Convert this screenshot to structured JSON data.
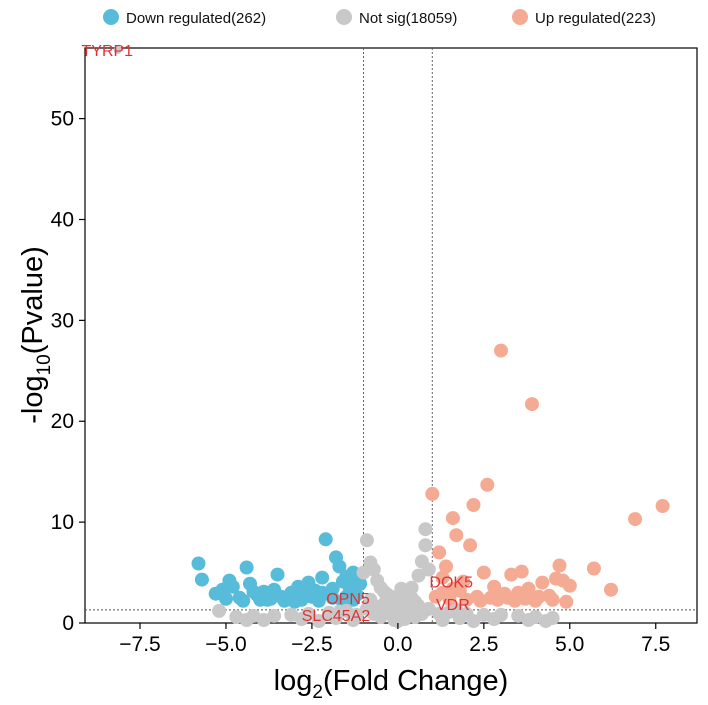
{
  "chart_data": {
    "type": "scatter",
    "title": "",
    "xlabel": {
      "base": "log",
      "sub": "2",
      "rest": "(Fold Change)"
    },
    "ylabel": {
      "base": "-log",
      "sub": "10",
      "rest": "(Pvalue)"
    },
    "xlim": [
      -9.1,
      8.7
    ],
    "ylim": [
      0,
      57
    ],
    "xticks": [
      -7.5,
      -5.0,
      -2.5,
      0.0,
      2.5,
      5.0,
      7.5
    ],
    "xtick_labels": [
      "−7.5",
      "−5.0",
      "−2.5",
      "0.0",
      "2.5",
      "5.0",
      "7.5"
    ],
    "yticks": [
      0,
      10,
      20,
      30,
      40,
      50
    ],
    "ytick_labels": [
      "0",
      "10",
      "20",
      "30",
      "40",
      "50"
    ],
    "thresholds": {
      "fc_lines": [
        -1,
        1
      ],
      "p_line": 1.3
    },
    "legend": [
      {
        "label": "Down regulated(262)",
        "color": "#56bcd9"
      },
      {
        "label": "Not sig(18059)",
        "color": "#c8c8c8"
      },
      {
        "label": "Up regulated(223)",
        "color": "#f4aa93"
      }
    ],
    "series": [
      {
        "name": "Down regulated",
        "color": "#56bcd9",
        "points": [
          [
            -5.8,
            5.9
          ],
          [
            -5.7,
            4.3
          ],
          [
            -5.3,
            2.9
          ],
          [
            -5.1,
            3.3
          ],
          [
            -4.9,
            4.2
          ],
          [
            -4.8,
            3.6
          ],
          [
            -4.6,
            2.5
          ],
          [
            -4.4,
            5.5
          ],
          [
            -4.3,
            3.9
          ],
          [
            -4.1,
            2.8
          ],
          [
            -3.9,
            3.1
          ],
          [
            -3.7,
            2.4
          ],
          [
            -3.5,
            4.8
          ],
          [
            -3.3,
            2.2
          ],
          [
            -3.1,
            3.0
          ],
          [
            -2.9,
            3.6
          ],
          [
            -2.8,
            2.3
          ],
          [
            -2.6,
            4.0
          ],
          [
            -2.5,
            2.6
          ],
          [
            -2.4,
            3.2
          ],
          [
            -2.2,
            4.5
          ],
          [
            -2.1,
            8.3
          ],
          [
            -2.0,
            2.9
          ],
          [
            -1.9,
            3.4
          ],
          [
            -1.8,
            6.5
          ],
          [
            -1.7,
            5.6
          ],
          [
            -1.6,
            4.1
          ],
          [
            -1.5,
            2.6
          ],
          [
            -1.4,
            3.5
          ],
          [
            -1.3,
            5.0
          ],
          [
            -1.2,
            2.8
          ],
          [
            -1.1,
            3.9
          ],
          [
            -4.5,
            2.2
          ],
          [
            -3.8,
            2.3
          ],
          [
            -3.0,
            2.1
          ],
          [
            -2.3,
            2.2
          ],
          [
            -1.6,
            2.1
          ],
          [
            -3.4,
            2.6
          ],
          [
            -2.7,
            2.7
          ],
          [
            -4.0,
            2.3
          ],
          [
            -1.9,
            2.5
          ],
          [
            -1.3,
            2.3
          ],
          [
            -5.0,
            2.4
          ],
          [
            -3.6,
            3.3
          ],
          [
            -2.2,
            3.0
          ],
          [
            -1.5,
            4.6
          ],
          [
            -4.2,
            3.1
          ],
          [
            -1.2,
            4.4
          ]
        ]
      },
      {
        "name": "Not sig",
        "color": "#c8c8c8",
        "points": [
          [
            -1.0,
            5.0
          ],
          [
            -0.9,
            8.2
          ],
          [
            -0.8,
            6.0
          ],
          [
            -0.7,
            5.3
          ],
          [
            -0.6,
            4.2
          ],
          [
            -0.5,
            3.5
          ],
          [
            -0.3,
            2.8
          ],
          [
            -0.1,
            2.2
          ],
          [
            0.2,
            2.9
          ],
          [
            0.4,
            3.5
          ],
          [
            0.6,
            4.7
          ],
          [
            0.8,
            7.7
          ],
          [
            0.8,
            9.3
          ],
          [
            0.7,
            6.1
          ],
          [
            0.9,
            5.3
          ],
          [
            0.5,
            2.1
          ],
          [
            0.0,
            1.8
          ],
          [
            -0.4,
            1.9
          ],
          [
            0.3,
            1.9
          ],
          [
            0.6,
            1.7
          ],
          [
            -0.8,
            2.3
          ],
          [
            -0.2,
            1.5
          ],
          [
            0.1,
            1.2
          ],
          [
            -0.6,
            1.6
          ],
          [
            -1.5,
            1.2
          ],
          [
            -2.0,
            1.0
          ],
          [
            -2.6,
            0.9
          ],
          [
            -3.1,
            0.8
          ],
          [
            -3.6,
            0.7
          ],
          [
            -4.2,
            0.7
          ],
          [
            -4.7,
            0.6
          ],
          [
            -5.2,
            1.2
          ],
          [
            1.5,
            1.1
          ],
          [
            2.0,
            0.9
          ],
          [
            2.5,
            0.8
          ],
          [
            3.0,
            0.8
          ],
          [
            3.5,
            0.7
          ],
          [
            4.0,
            0.6
          ],
          [
            4.5,
            0.5
          ],
          [
            -1.2,
            0.8
          ],
          [
            1.2,
            0.9
          ],
          [
            -0.5,
            0.6
          ],
          [
            0.5,
            0.6
          ],
          [
            0.2,
            0.4
          ],
          [
            -0.1,
            0.3
          ],
          [
            -1.8,
            0.5
          ],
          [
            1.8,
            0.5
          ],
          [
            -2.8,
            0.4
          ],
          [
            2.8,
            0.4
          ],
          [
            -3.9,
            0.3
          ],
          [
            3.8,
            0.3
          ],
          [
            -0.9,
            1.4
          ],
          [
            0.9,
            1.4
          ],
          [
            -1.3,
            0.3
          ],
          [
            1.3,
            0.3
          ],
          [
            -2.3,
            0.2
          ],
          [
            2.2,
            0.2
          ],
          [
            0.0,
            0.2
          ],
          [
            -0.7,
            0.9
          ],
          [
            0.7,
            0.9
          ],
          [
            -0.3,
            1.0
          ],
          [
            0.3,
            1.0
          ],
          [
            -1.7,
            1.1
          ],
          [
            1.7,
            1.3
          ],
          [
            -4.4,
            0.3
          ],
          [
            4.3,
            0.2
          ],
          [
            -0.4,
            3.1
          ],
          [
            0.1,
            3.4
          ],
          [
            -0.2,
            2.6
          ],
          [
            0.4,
            2.5
          ]
        ]
      },
      {
        "name": "Up regulated",
        "color": "#f4aa93",
        "points": [
          [
            1.0,
            12.8
          ],
          [
            1.2,
            7.0
          ],
          [
            1.3,
            4.5
          ],
          [
            1.4,
            5.6
          ],
          [
            1.6,
            10.4
          ],
          [
            1.7,
            8.7
          ],
          [
            1.8,
            3.2
          ],
          [
            2.1,
            7.7
          ],
          [
            2.2,
            11.7
          ],
          [
            2.5,
            5.0
          ],
          [
            2.6,
            13.7
          ],
          [
            2.8,
            3.6
          ],
          [
            3.0,
            27.0
          ],
          [
            3.1,
            2.9
          ],
          [
            3.3,
            4.8
          ],
          [
            3.6,
            5.1
          ],
          [
            3.8,
            3.4
          ],
          [
            3.9,
            21.7
          ],
          [
            4.2,
            4.0
          ],
          [
            4.4,
            2.7
          ],
          [
            4.6,
            4.4
          ],
          [
            4.7,
            5.7
          ],
          [
            4.8,
            4.2
          ],
          [
            5.0,
            3.7
          ],
          [
            5.7,
            5.4
          ],
          [
            6.2,
            3.3
          ],
          [
            6.9,
            10.3
          ],
          [
            7.7,
            11.6
          ],
          [
            1.5,
            2.4
          ],
          [
            2.0,
            2.3
          ],
          [
            2.4,
            2.2
          ],
          [
            2.9,
            2.3
          ],
          [
            3.4,
            2.2
          ],
          [
            3.7,
            2.4
          ],
          [
            4.0,
            2.2
          ],
          [
            4.5,
            2.3
          ],
          [
            4.9,
            2.1
          ],
          [
            1.9,
            4.1
          ],
          [
            2.3,
            2.6
          ],
          [
            3.2,
            2.5
          ],
          [
            1.1,
            2.6
          ],
          [
            1.3,
            3.0
          ],
          [
            2.7,
            2.5
          ],
          [
            4.1,
            2.6
          ],
          [
            3.5,
            3.0
          ],
          [
            1.6,
            3.4
          ]
        ]
      }
    ],
    "highlight": {
      "name": "TYRP1",
      "x": -8.15,
      "y": 56.8,
      "color": "#c8c8c8"
    },
    "annotations": [
      {
        "text": "TYRP1",
        "x": -8.45,
        "y": 56.8,
        "color": "#e03232",
        "anchor": "middle"
      },
      {
        "text": "OPN5",
        "x": -1.45,
        "y": 2.5,
        "color": "#e03232",
        "anchor": "middle"
      },
      {
        "text": "SLC45A2",
        "x": -1.8,
        "y": 0.8,
        "color": "#e03232",
        "anchor": "middle"
      },
      {
        "text": "DOK5",
        "x": 1.55,
        "y": 4.1,
        "color": "#e03232",
        "anchor": "middle"
      },
      {
        "text": "VDR",
        "x": 1.6,
        "y": 1.9,
        "color": "#e03232",
        "anchor": "middle"
      }
    ]
  }
}
